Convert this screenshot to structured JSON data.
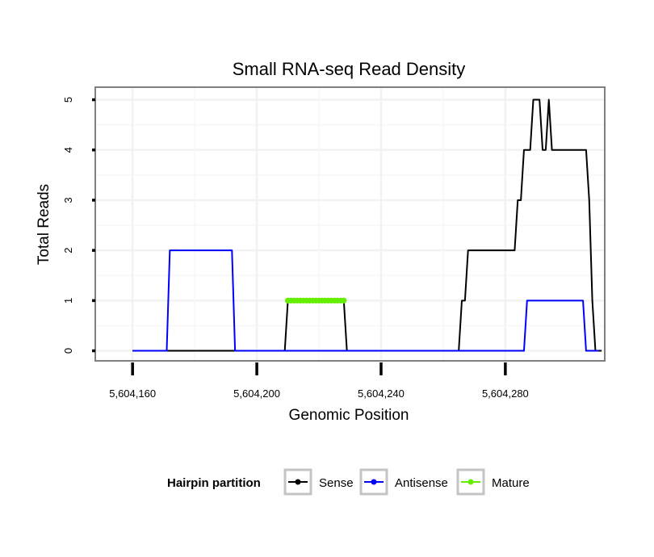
{
  "chart_data": {
    "type": "line",
    "title": "Small RNA-seq Read Density",
    "xlabel": "Genomic Position",
    "ylabel": "Total Reads",
    "xlim": [
      5604148,
      5604312
    ],
    "ylim": [
      -0.2,
      5.25
    ],
    "x_ticks": [
      5604160,
      5604200,
      5604240,
      5604280
    ],
    "x_tick_labels": [
      "5,604,160",
      "5,604,200",
      "5,604,240",
      "5,604,280"
    ],
    "y_ticks": [
      0,
      1,
      2,
      3,
      4,
      5
    ],
    "y_tick_labels": [
      "0",
      "1",
      "2",
      "3",
      "4",
      "5"
    ],
    "grid": true,
    "legend": {
      "title": "Hairpin partition",
      "position": "bottom",
      "entries": [
        "Sense",
        "Antisense",
        "Mature"
      ]
    },
    "series": [
      {
        "name": "Sense",
        "color": "#000000",
        "points": [
          [
            5604160,
            0
          ],
          [
            5604209,
            0
          ],
          [
            5604210,
            1
          ],
          [
            5604228,
            1
          ],
          [
            5604229,
            0
          ],
          [
            5604265,
            0
          ],
          [
            5604266,
            1
          ],
          [
            5604267,
            1
          ],
          [
            5604268,
            2
          ],
          [
            5604283,
            2
          ],
          [
            5604284,
            3
          ],
          [
            5604285,
            3
          ],
          [
            5604286,
            4
          ],
          [
            5604288,
            4
          ],
          [
            5604289,
            5
          ],
          [
            5604291,
            5
          ],
          [
            5604292,
            4
          ],
          [
            5604293,
            4
          ],
          [
            5604294,
            5
          ],
          [
            5604295,
            4
          ],
          [
            5604306,
            4
          ],
          [
            5604307,
            3
          ],
          [
            5604308,
            1
          ],
          [
            5604309,
            0
          ],
          [
            5604311,
            0
          ]
        ]
      },
      {
        "name": "Antisense",
        "color": "#0000ff",
        "points": [
          [
            5604160,
            0
          ],
          [
            5604171,
            0
          ],
          [
            5604172,
            2
          ],
          [
            5604192,
            2
          ],
          [
            5604193,
            0
          ],
          [
            5604286,
            0
          ],
          [
            5604287,
            1
          ],
          [
            5604305,
            1
          ],
          [
            5604306,
            0
          ],
          [
            5604310,
            0
          ]
        ]
      },
      {
        "name": "Mature",
        "color": "#66ee00",
        "points": [
          [
            5604210,
            1
          ],
          [
            5604211,
            1
          ],
          [
            5604212,
            1
          ],
          [
            5604213,
            1
          ],
          [
            5604214,
            1
          ],
          [
            5604215,
            1
          ],
          [
            5604216,
            1
          ],
          [
            5604217,
            1
          ],
          [
            5604218,
            1
          ],
          [
            5604219,
            1
          ],
          [
            5604220,
            1
          ],
          [
            5604221,
            1
          ],
          [
            5604222,
            1
          ],
          [
            5604223,
            1
          ],
          [
            5604224,
            1
          ],
          [
            5604225,
            1
          ],
          [
            5604226,
            1
          ],
          [
            5604227,
            1
          ],
          [
            5604228,
            1
          ]
        ]
      }
    ]
  }
}
